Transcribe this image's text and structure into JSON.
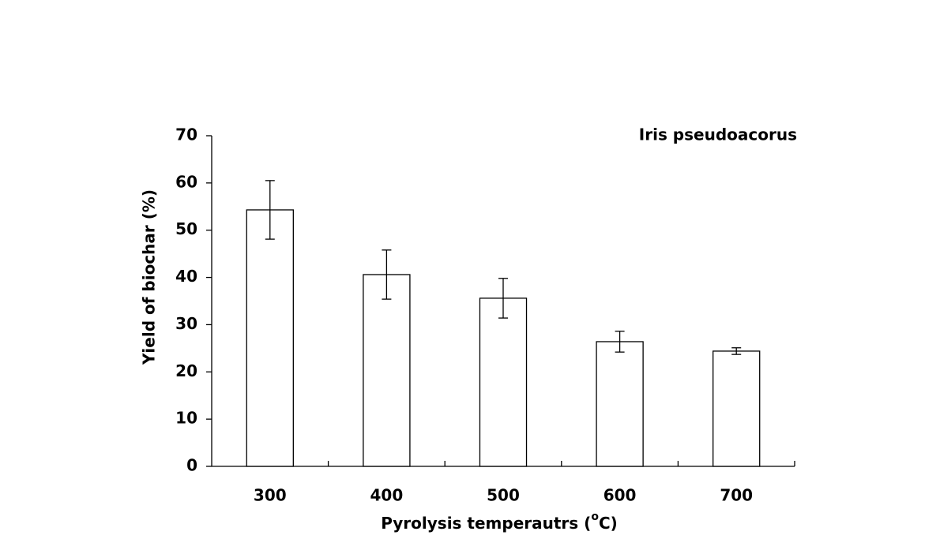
{
  "chart_data": {
    "type": "bar",
    "annotation": "Iris pseudoacorus",
    "y_label": "Yield of biochar (%)",
    "x_label": [
      "Pyrolysis temperautrs (",
      "o",
      "C)"
    ],
    "categories": [
      "300",
      "400",
      "500",
      "600",
      "700"
    ],
    "values": [
      54.3,
      40.6,
      35.6,
      26.4,
      24.4
    ],
    "errors": [
      6.2,
      5.2,
      4.2,
      2.2,
      0.7
    ],
    "color": "#ffffff",
    "edge_color": "#000000",
    "ylim": [
      0,
      70
    ],
    "yticks": [
      0,
      10,
      20,
      30,
      40,
      50,
      60,
      70
    ],
    "grid": false
  }
}
